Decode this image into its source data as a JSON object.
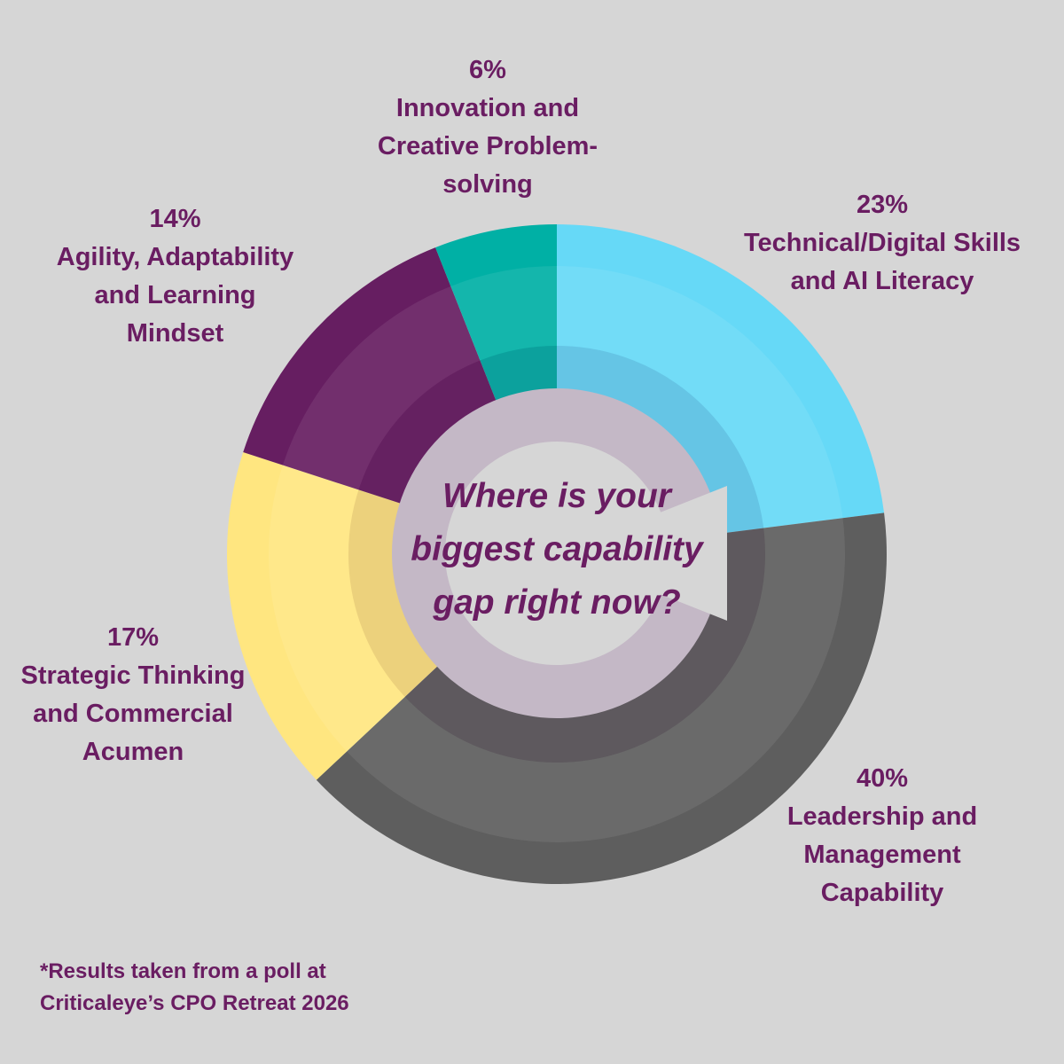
{
  "chart_data": {
    "type": "pie",
    "title": "Where is your biggest capability gap right now?",
    "categories": [
      "Technical/Digital Skills and AI Literacy",
      "Leadership and Management Capability",
      "Strategic Thinking and Commercial Acumen",
      "Agility, Adaptability and Learning Mindset",
      "Innovation and Creative Problem-solving"
    ],
    "values": [
      23,
      40,
      17,
      14,
      6
    ],
    "value_labels": [
      "23%",
      "40%",
      "17%",
      "14%",
      "6%"
    ],
    "colors": [
      "#66d9f7",
      "#5e5e5e",
      "#ffe680",
      "#661e61",
      "#00b0a5"
    ],
    "label_lines": [
      [
        "Technical/Digital Skills",
        "and AI Literacy"
      ],
      [
        "Leadership and",
        "Management",
        "Capability"
      ],
      [
        "Strategic Thinking",
        "and Commercial",
        "Acumen"
      ],
      [
        "Agility, Adaptability",
        "and Learning",
        "Mindset"
      ],
      [
        "Innovation and",
        "Creative Problem-",
        "solving"
      ]
    ]
  },
  "footnote": [
    "*Results taken from a poll at",
    "Criticaleye’s CPO Retreat 2026"
  ]
}
